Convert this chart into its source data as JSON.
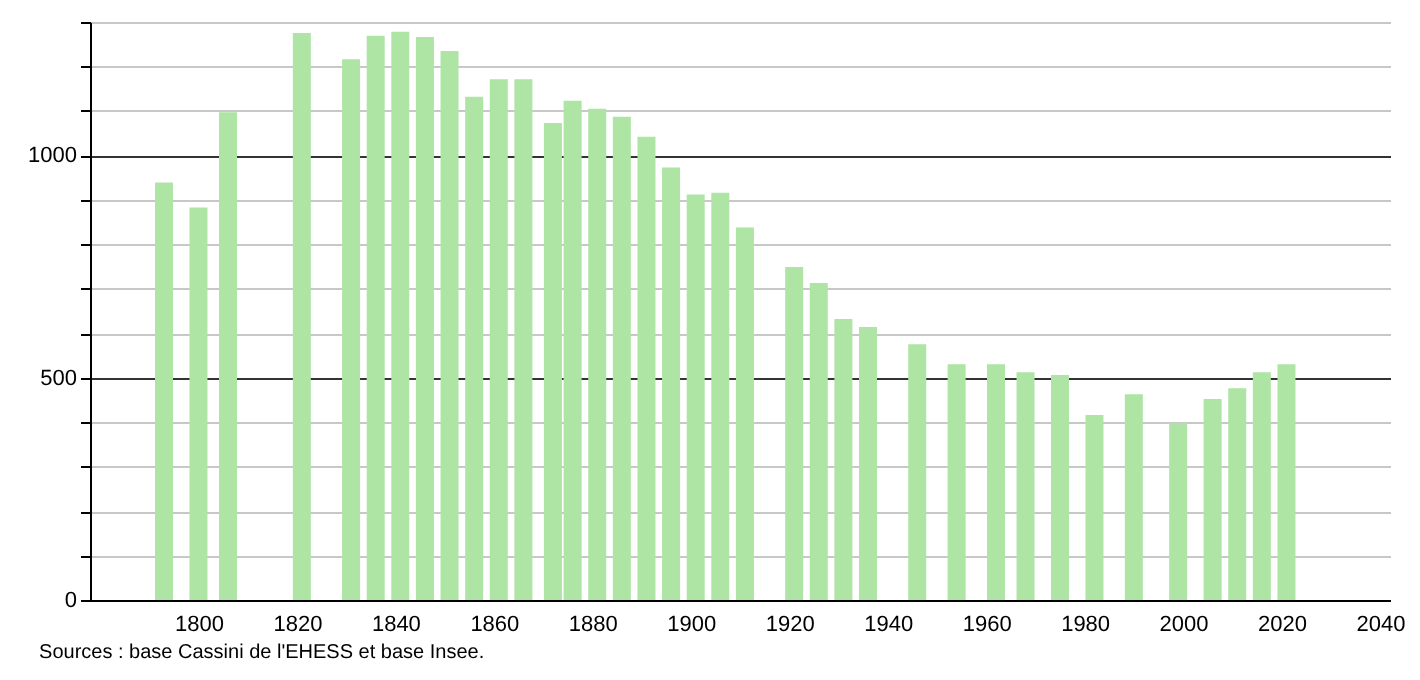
{
  "chart_data": {
    "type": "bar",
    "x": [
      1793,
      1800,
      1806,
      1821,
      1831,
      1836,
      1841,
      1846,
      1851,
      1856,
      1861,
      1866,
      1872,
      1876,
      1881,
      1886,
      1891,
      1896,
      1901,
      1906,
      1911,
      1921,
      1926,
      1931,
      1936,
      1946,
      1954,
      1962,
      1968,
      1975,
      1982,
      1990,
      1999,
      2006,
      2011,
      2016,
      2021
    ],
    "values": [
      939,
      883,
      1097,
      1275,
      1216,
      1269,
      1278,
      1266,
      1235,
      1132,
      1171,
      1171,
      1073,
      1123,
      1105,
      1087,
      1042,
      973,
      912,
      916,
      838,
      749,
      713,
      632,
      614,
      575,
      530,
      530,
      512,
      506,
      416,
      463,
      398,
      452,
      476,
      512,
      530
    ],
    "color": "#aee5a5",
    "xlim": [
      1780,
      2040
    ],
    "xticks": [
      1800,
      1820,
      1840,
      1860,
      1880,
      1900,
      1920,
      1940,
      1960,
      1980,
      2000,
      2020,
      2040
    ],
    "ylim": [
      0,
      1300
    ],
    "yticks": [
      0,
      {
        "value": 100,
        "label": null
      },
      {
        "value": 200,
        "label": null
      },
      {
        "value": 300,
        "label": null
      },
      {
        "value": 400,
        "label": null
      },
      500,
      {
        "value": 600,
        "label": null
      },
      {
        "value": 700,
        "label": null
      },
      {
        "value": 800,
        "label": null
      },
      {
        "value": 900,
        "label": null
      },
      1000,
      {
        "value": 1100,
        "label": null
      },
      {
        "value": 1200,
        "label": null
      },
      {
        "value": 1300,
        "label": null
      }
    ],
    "grid": "y",
    "annotations": [
      "Sources : base Cassini de l'EHESS et base Insee."
    ]
  }
}
